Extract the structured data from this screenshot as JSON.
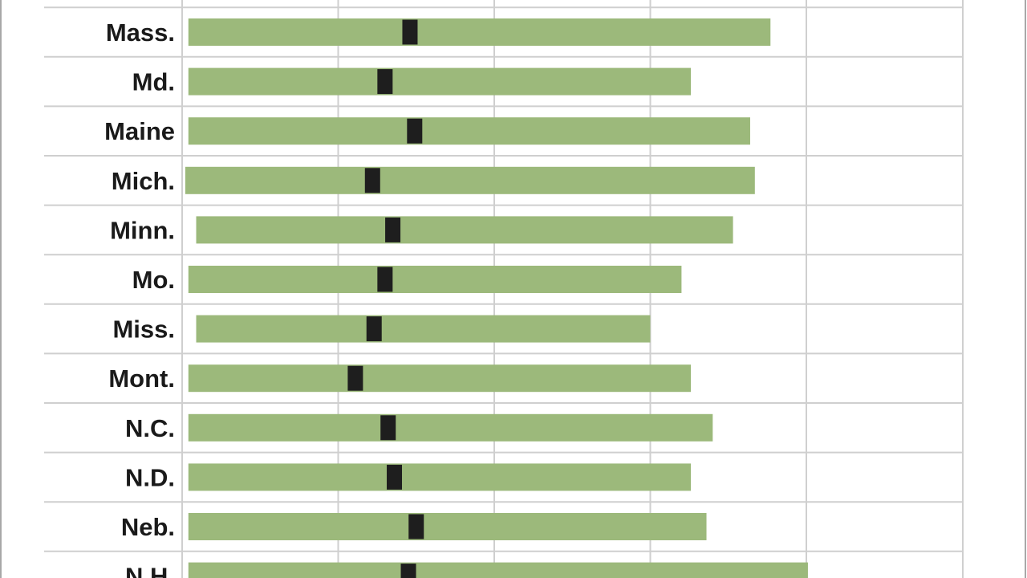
{
  "chart_data": {
    "type": "bar",
    "subtype": "range-bar-with-marker",
    "categories": [
      "Mass.",
      "Md.",
      "Maine",
      "Mich.",
      "Minn.",
      "Mo.",
      "Miss.",
      "Mont.",
      "N.C.",
      "N.D.",
      "Neb.",
      "N.H."
    ],
    "series": [
      {
        "role": "range-start",
        "values": [
          0.04,
          0.04,
          0.04,
          0.02,
          0.09,
          0.04,
          0.09,
          0.04,
          0.04,
          0.04,
          0.04,
          0.04
        ]
      },
      {
        "role": "range-end",
        "values": [
          3.77,
          3.26,
          3.64,
          3.67,
          3.53,
          3.2,
          3.0,
          3.26,
          3.4,
          3.26,
          3.36,
          4.01
        ]
      },
      {
        "role": "marker",
        "values": [
          1.46,
          1.3,
          1.49,
          1.22,
          1.35,
          1.3,
          1.23,
          1.11,
          1.32,
          1.36,
          1.5,
          1.45
        ]
      }
    ],
    "xlim": [
      0,
      5
    ],
    "x_gridlines": [
      1,
      2,
      3,
      4
    ],
    "grid": true,
    "tick_labels_visible": false,
    "colors": {
      "bar": "#9cb97b",
      "marker": "#1e1e1e",
      "grid": "#cfcfcf",
      "label": "#1a1a1a"
    }
  }
}
